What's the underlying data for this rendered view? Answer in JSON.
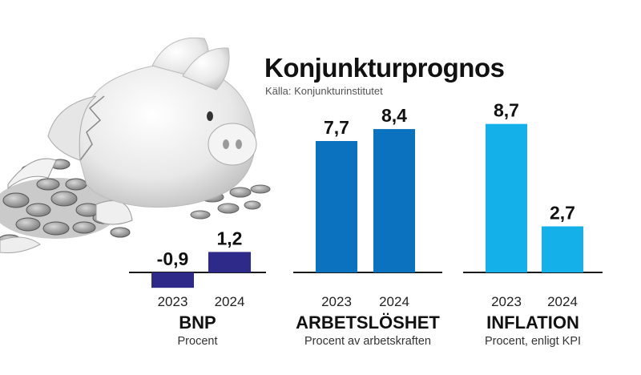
{
  "header": {
    "title": "Konjunkturprognos",
    "source": "Källa: Konjunkturinstitutet"
  },
  "colors": {
    "bnp": "#2e2a8a",
    "arbetsloshet": "#0b72c0",
    "inflation": "#13b0ea",
    "axis": "#1a1a1a"
  },
  "illustration": "broken-piggy-bank-with-coins",
  "chart_data": [
    {
      "type": "bar",
      "title": "BNP",
      "subtitle": "Procent",
      "categories": [
        "2023",
        "2024"
      ],
      "values": [
        -0.9,
        1.2
      ],
      "value_labels": [
        "-0,9",
        "1,2"
      ],
      "color": "#2e2a8a"
    },
    {
      "type": "bar",
      "title": "ARBETSLÖSHET",
      "subtitle": "Procent av arbetskraften",
      "categories": [
        "2023",
        "2024"
      ],
      "values": [
        7.7,
        8.4
      ],
      "value_labels": [
        "7,7",
        "8,4"
      ],
      "color": "#0b72c0"
    },
    {
      "type": "bar",
      "title": "INFLATION",
      "subtitle": "Procent, enligt KPI",
      "categories": [
        "2023",
        "2024"
      ],
      "values": [
        8.7,
        2.7
      ],
      "value_labels": [
        "8,7",
        "2,7"
      ],
      "color": "#13b0ea"
    }
  ]
}
